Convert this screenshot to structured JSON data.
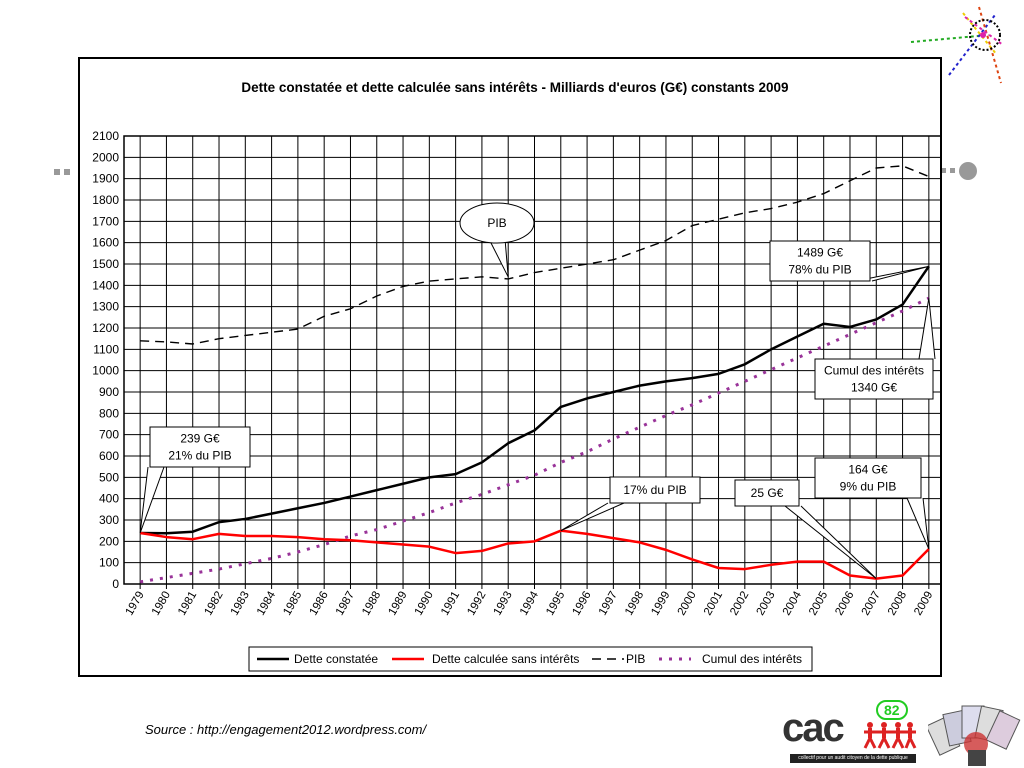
{
  "decorations": {
    "colors": [
      "#d41",
      "#2a2",
      "#22c",
      "#d2a",
      "#ec0"
    ]
  },
  "source": "Source : http://engagement2012.wordpress.com/",
  "logo": {
    "text": "cac",
    "number": "82",
    "tagline": "collectif pour un audit citoyen de la dette publique",
    "icon_names": [
      "people-figures-icon",
      "playing-cards-icon"
    ]
  },
  "chart_data": {
    "type": "line",
    "title": "Dette constatée et dette calculée sans intérêts  - Milliards d'euros (G€) constants 2009",
    "x": [
      "1979",
      "1980",
      "1981",
      "1982",
      "1983",
      "1984",
      "1985",
      "1986",
      "1987",
      "1988",
      "1989",
      "1990",
      "1991",
      "1992",
      "1993",
      "1994",
      "1995",
      "1996",
      "1997",
      "1998",
      "1999",
      "2000",
      "2001",
      "2002",
      "2003",
      "2004",
      "2005",
      "2006",
      "2007",
      "2008",
      "2009"
    ],
    "ylim": [
      0,
      2100
    ],
    "yticks": [
      "0",
      "100",
      "200",
      "300",
      "400",
      "500",
      "600",
      "700",
      "800",
      "900",
      "1000",
      "1100",
      "1200",
      "1300",
      "1400",
      "1500",
      "1600",
      "1700",
      "1800",
      "1900",
      "2000",
      "2100"
    ],
    "grid": true,
    "legend_position": "bottom",
    "series": [
      {
        "name": "Dette constatée",
        "color": "#000000",
        "style": "solid",
        "values": [
          239,
          238,
          245,
          290,
          305,
          330,
          355,
          380,
          410,
          440,
          470,
          500,
          515,
          570,
          660,
          720,
          830,
          870,
          900,
          930,
          950,
          965,
          985,
          1030,
          1100,
          1160,
          1220,
          1205,
          1240,
          1310,
          1489
        ]
      },
      {
        "name": "Dette calculée sans intérêts",
        "color": "#ff0000",
        "style": "solid",
        "values": [
          239,
          220,
          210,
          235,
          225,
          225,
          220,
          210,
          205,
          195,
          185,
          175,
          145,
          155,
          190,
          200,
          250,
          235,
          215,
          195,
          160,
          115,
          75,
          70,
          90,
          105,
          105,
          40,
          25,
          40,
          164
        ]
      },
      {
        "name": "PIB",
        "color": "#000000",
        "style": "dashed",
        "values": [
          1140,
          1135,
          1125,
          1150,
          1165,
          1180,
          1195,
          1255,
          1290,
          1350,
          1395,
          1420,
          1430,
          1440,
          1430,
          1460,
          1480,
          1500,
          1520,
          1565,
          1610,
          1680,
          1710,
          1740,
          1760,
          1790,
          1830,
          1890,
          1950,
          1960,
          1910
        ]
      },
      {
        "name": "Cumul des intérêts",
        "color": "#993399",
        "style": "dotted",
        "values": [
          10,
          30,
          50,
          70,
          95,
          120,
          150,
          185,
          225,
          255,
          295,
          335,
          380,
          420,
          465,
          510,
          570,
          620,
          680,
          735,
          790,
          840,
          895,
          950,
          1005,
          1060,
          1115,
          1170,
          1225,
          1280,
          1340
        ]
      }
    ],
    "annotations": [
      {
        "lines": [
          "239 G€",
          "21% du PIB"
        ],
        "x": "1979",
        "y": 239
      },
      {
        "lines": [
          "PIB"
        ],
        "x": "1993",
        "y": 1430
      },
      {
        "lines": [
          "1489 G€",
          "78% du PIB"
        ],
        "x": "2009",
        "y": 1489
      },
      {
        "lines": [
          "Cumul des intérêts",
          "1340 G€"
        ],
        "x": "2009",
        "y": 1340
      },
      {
        "lines": [
          "17% du PIB"
        ],
        "x": "1995",
        "y": 250
      },
      {
        "lines": [
          "25 G€"
        ],
        "x": "2007",
        "y": 25
      },
      {
        "lines": [
          "164 G€",
          "9% du PIB"
        ],
        "x": "2009",
        "y": 164
      }
    ]
  }
}
